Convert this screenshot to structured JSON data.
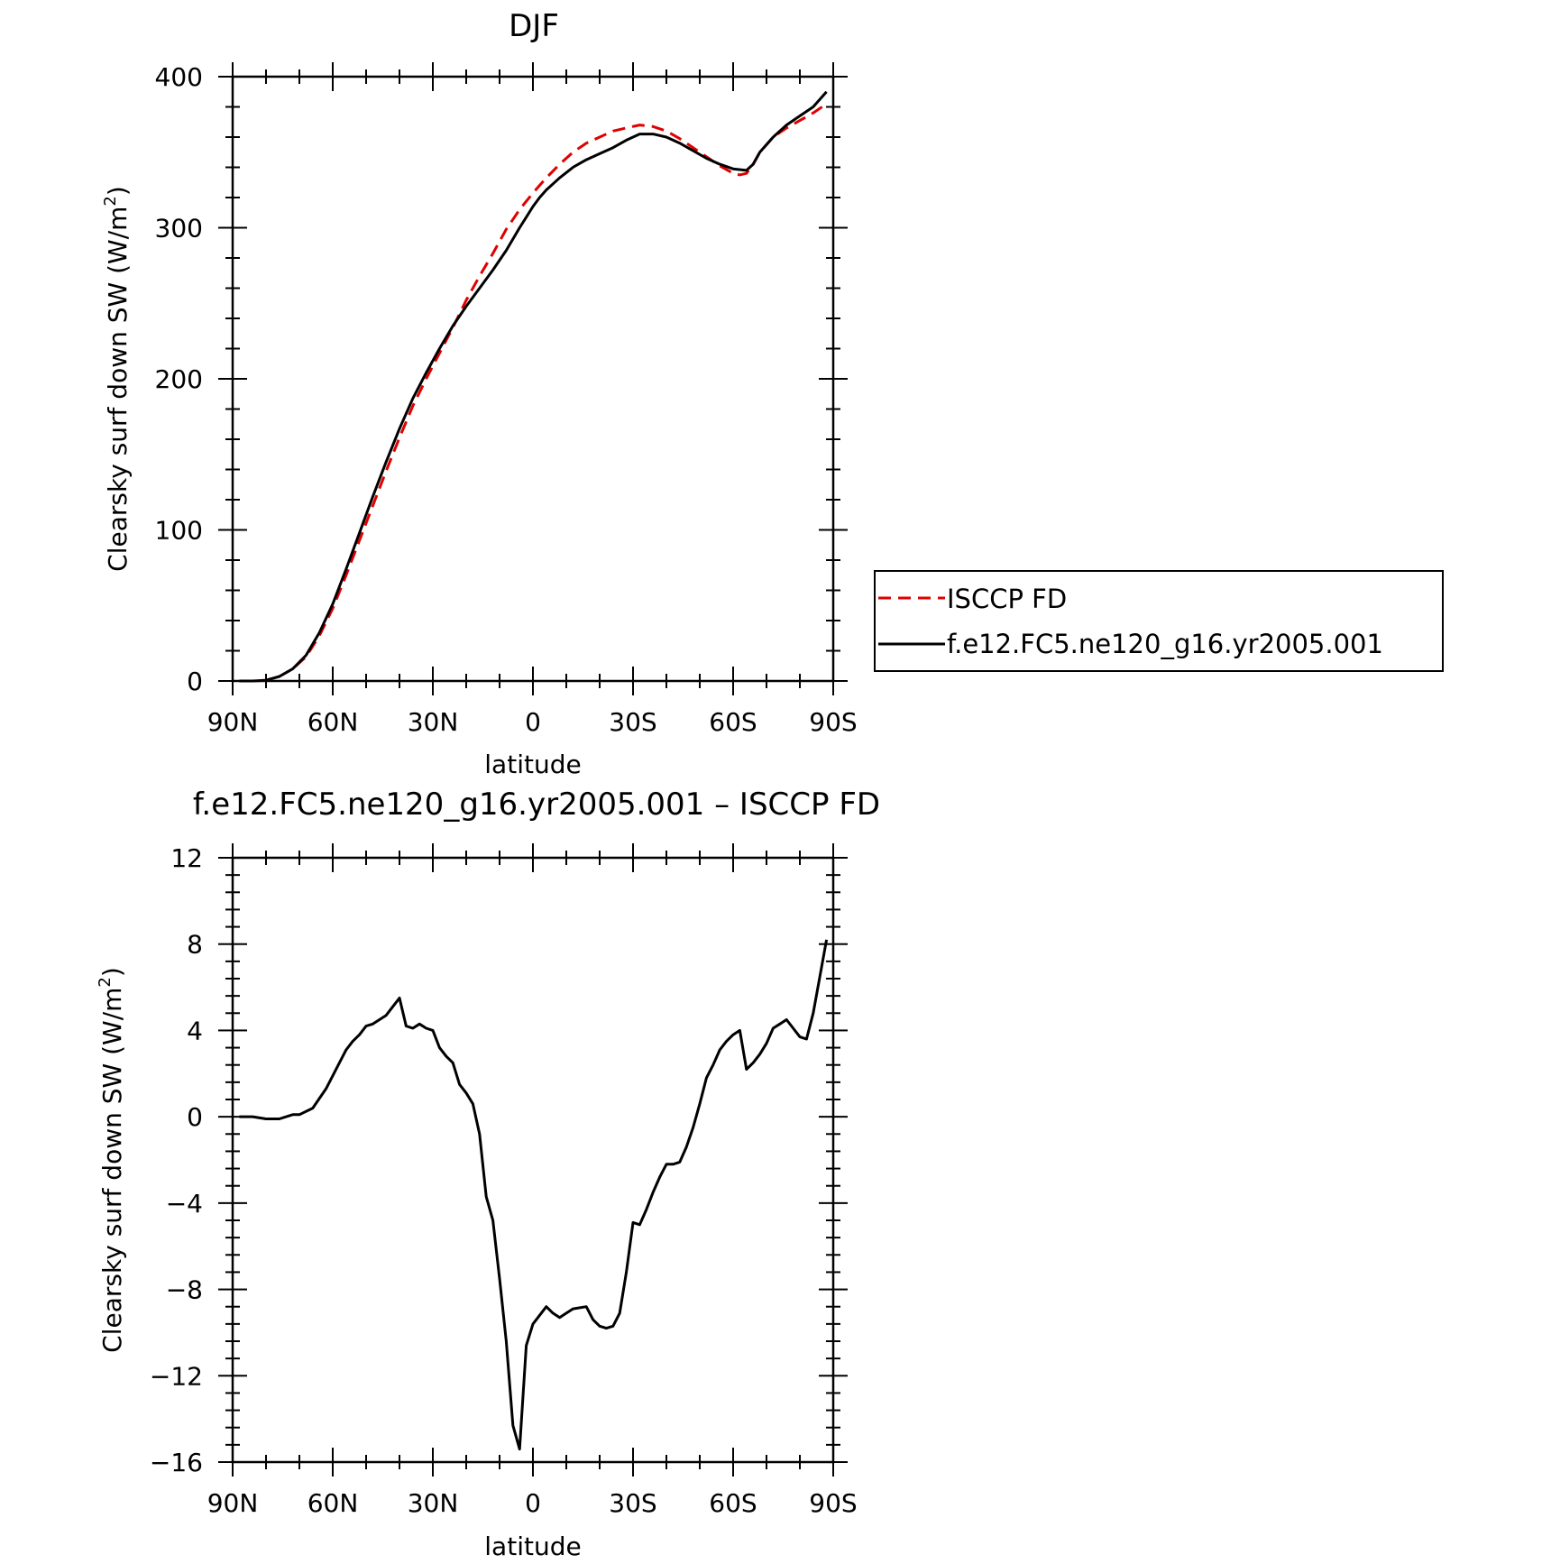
{
  "chart_data": [
    {
      "type": "line",
      "title": "DJF",
      "xlabel": "latitude",
      "ylabel_main": "Clearsky surf down SW (W/m",
      "ylabel_sup": "2",
      "ylabel_close": ")",
      "xlim": [
        90,
        -90
      ],
      "ylim": [
        0,
        400
      ],
      "xticks": [
        90,
        60,
        30,
        0,
        -30,
        -60,
        -90
      ],
      "xtick_labels": [
        "90N",
        "60N",
        "30N",
        "0",
        "30S",
        "60S",
        "90S"
      ],
      "yticks": [
        0,
        100,
        200,
        300,
        400
      ],
      "ytick_labels": [
        "0",
        "100",
        "200",
        "300",
        "400"
      ],
      "grid": false,
      "legend": "right",
      "series": [
        {
          "name": "ISCCP FD",
          "color": "#e00000",
          "dash": "dashed",
          "x": [
            88,
            84,
            80,
            76,
            72,
            68,
            64,
            60,
            56,
            52,
            48,
            44,
            40,
            36,
            32,
            28,
            24,
            20,
            16,
            12,
            8,
            4,
            0,
            -4,
            -8,
            -12,
            -16,
            -20,
            -24,
            -28,
            -32,
            -36,
            -40,
            -44,
            -48,
            -52,
            -56,
            -60,
            -62,
            -64,
            -66,
            -68,
            -72,
            -76,
            -80,
            -84,
            -88
          ],
          "y": [
            0,
            0,
            0.5,
            3,
            8,
            16,
            30,
            48,
            70,
            93,
            116,
            139,
            161,
            182,
            200,
            217,
            234,
            252,
            268,
            283,
            299,
            312,
            323,
            333,
            342,
            350,
            356,
            360,
            364,
            366,
            368,
            367,
            364,
            359,
            353,
            347,
            341,
            336,
            335,
            336,
            342,
            350,
            360,
            366,
            371,
            376,
            382
          ]
        },
        {
          "name": "f.e12.FC5.ne120_g16.yr2005.001",
          "color": "#000000",
          "dash": "solid",
          "x": [
            88,
            84,
            80,
            76,
            72,
            68,
            64,
            60,
            56,
            52,
            48,
            44,
            40,
            36,
            32,
            28,
            24,
            20,
            16,
            12,
            8,
            4,
            2,
            0,
            -2,
            -4,
            -8,
            -12,
            -16,
            -20,
            -24,
            -28,
            -32,
            -36,
            -40,
            -44,
            -48,
            -52,
            -56,
            -60,
            -64,
            -66,
            -68,
            -72,
            -76,
            -80,
            -84,
            -88
          ],
          "y": [
            0,
            0,
            0.5,
            3,
            8,
            17,
            32,
            51,
            74,
            98,
            122,
            145,
            167,
            187,
            204,
            220,
            235,
            248,
            260,
            272,
            285,
            300,
            307,
            314,
            320,
            325,
            333,
            340,
            345,
            349,
            353,
            358,
            362,
            362,
            360,
            356,
            351,
            346,
            342,
            339,
            338,
            342,
            350,
            360,
            368,
            374,
            380,
            390
          ]
        }
      ]
    },
    {
      "type": "line",
      "title": "f.e12.FC5.ne120_g16.yr2005.001 – ISCCP FD",
      "xlabel": "latitude",
      "ylabel_main": "Clearsky surf down SW (W/m",
      "ylabel_sup": "2",
      "ylabel_close": ")",
      "xlim": [
        90,
        -90
      ],
      "ylim": [
        -16,
        12
      ],
      "xticks": [
        90,
        60,
        30,
        0,
        -30,
        -60,
        -90
      ],
      "xtick_labels": [
        "90N",
        "60N",
        "30N",
        "0",
        "30S",
        "60S",
        "90S"
      ],
      "yticks": [
        -16,
        -12,
        -8,
        -4,
        0,
        4,
        8,
        12
      ],
      "ytick_labels": [
        "−16",
        "−12",
        "−8",
        "−4",
        "0",
        "4",
        "8",
        "12"
      ],
      "grid": false,
      "series": [
        {
          "name": "",
          "color": "#000000",
          "dash": "solid",
          "x": [
            88,
            84,
            80,
            78,
            76,
            72,
            70,
            66,
            62,
            58,
            56,
            54,
            52,
            50,
            48,
            46,
            44,
            42,
            40,
            38,
            36,
            34,
            32,
            30,
            28,
            26,
            24,
            22,
            20,
            18,
            16,
            14,
            12,
            10,
            8,
            6,
            4,
            2,
            0,
            -4,
            -6,
            -8,
            -10,
            -12,
            -16,
            -18,
            -20,
            -22,
            -24,
            -26,
            -28,
            -30,
            -32,
            -34,
            -36,
            -38,
            -40,
            -42,
            -44,
            -46,
            -48,
            -50,
            -52,
            -54,
            -56,
            -58,
            -60,
            -62,
            -64,
            -66,
            -68,
            -70,
            -72,
            -74,
            -76,
            -78,
            -80,
            -82,
            -84,
            -86,
            -88
          ],
          "y": [
            0,
            0,
            -0.1,
            -0.1,
            -0.1,
            0.1,
            0.1,
            0.4,
            1.3,
            2.5,
            3.1,
            3.5,
            3.8,
            4.2,
            4.3,
            4.5,
            4.7,
            5.1,
            5.5,
            4.2,
            4.1,
            4.3,
            4.1,
            4.0,
            3.2,
            2.8,
            2.5,
            1.5,
            1.1,
            0.6,
            -0.8,
            -3.7,
            -4.8,
            -7.5,
            -10.4,
            -14.3,
            -15.4,
            -10.6,
            -9.6,
            -8.8,
            -9.1,
            -9.3,
            -9.1,
            -8.9,
            -8.8,
            -9.4,
            -9.7,
            -9.8,
            -9.7,
            -9.1,
            -7.2,
            -4.9,
            -5.0,
            -4.3,
            -3.5,
            -2.8,
            -2.2,
            -2.2,
            -2.1,
            -1.4,
            -0.5,
            0.6,
            1.8,
            2.4,
            3.1,
            3.5,
            3.8,
            4.0,
            2.2,
            2.5,
            2.9,
            3.4,
            4.1,
            4.3,
            4.5,
            4.1,
            3.7,
            3.6,
            4.8,
            6.5,
            8.2
          ]
        }
      ]
    }
  ]
}
